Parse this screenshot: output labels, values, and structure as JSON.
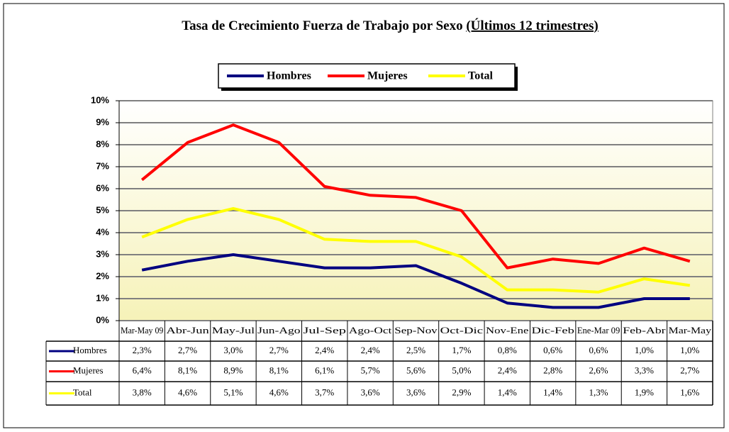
{
  "chart_data": {
    "type": "line",
    "title": "Tasa de Crecimiento Fuerza de Trabajo por Sexo",
    "subtitle": "(Últimos 12 trimestres)",
    "categories": [
      "Mar-May 09",
      "Abr-Jun",
      "May-Jul",
      "Jun-Ago",
      "Jul-Sep",
      "Ago-Oct",
      "Sep-Nov",
      "Oct-Dic",
      "Nov-Ene",
      "Dic-Feb",
      "Ene-Mar 09",
      "Feb-Abr",
      "Mar-May"
    ],
    "series": [
      {
        "name": "Hombres",
        "color": "#000080",
        "values": [
          2.3,
          2.7,
          3.0,
          2.7,
          2.4,
          2.4,
          2.5,
          1.7,
          0.8,
          0.6,
          0.6,
          1.0,
          1.0
        ],
        "value_labels": [
          "2,3%",
          "2,7%",
          "3,0%",
          "2,7%",
          "2,4%",
          "2,4%",
          "2,5%",
          "1,7%",
          "0,8%",
          "0,6%",
          "0,6%",
          "1,0%",
          "1,0%"
        ]
      },
      {
        "name": "Mujeres",
        "color": "#ff0000",
        "values": [
          6.4,
          8.1,
          8.9,
          8.1,
          6.1,
          5.7,
          5.6,
          5.0,
          2.4,
          2.8,
          2.6,
          3.3,
          2.7
        ],
        "value_labels": [
          "6,4%",
          "8,1%",
          "8,9%",
          "8,1%",
          "6,1%",
          "5,7%",
          "5,6%",
          "5,0%",
          "2,4%",
          "2,8%",
          "2,6%",
          "3,3%",
          "2,7%"
        ]
      },
      {
        "name": "Total",
        "color": "#ffff00",
        "values": [
          3.8,
          4.6,
          5.1,
          4.6,
          3.7,
          3.6,
          3.6,
          2.9,
          1.4,
          1.4,
          1.3,
          1.9,
          1.6
        ],
        "value_labels": [
          "3,8%",
          "4,6%",
          "5,1%",
          "4,6%",
          "3,7%",
          "3,6%",
          "3,6%",
          "2,9%",
          "1,4%",
          "1,4%",
          "1,3%",
          "1,9%",
          "1,6%"
        ]
      }
    ],
    "ylim": [
      0,
      10
    ],
    "yticks": [
      {
        "value": 0,
        "label": "0%"
      },
      {
        "value": 1,
        "label": "1%"
      },
      {
        "value": 2,
        "label": "2%"
      },
      {
        "value": 3,
        "label": "3%"
      },
      {
        "value": 4,
        "label": "4%"
      },
      {
        "value": 5,
        "label": "5%"
      },
      {
        "value": 6,
        "label": "6%"
      },
      {
        "value": 7,
        "label": "7%"
      },
      {
        "value": 8,
        "label": "8%"
      },
      {
        "value": 9,
        "label": "9%"
      },
      {
        "value": 10,
        "label": "10%"
      }
    ],
    "grid": true
  }
}
